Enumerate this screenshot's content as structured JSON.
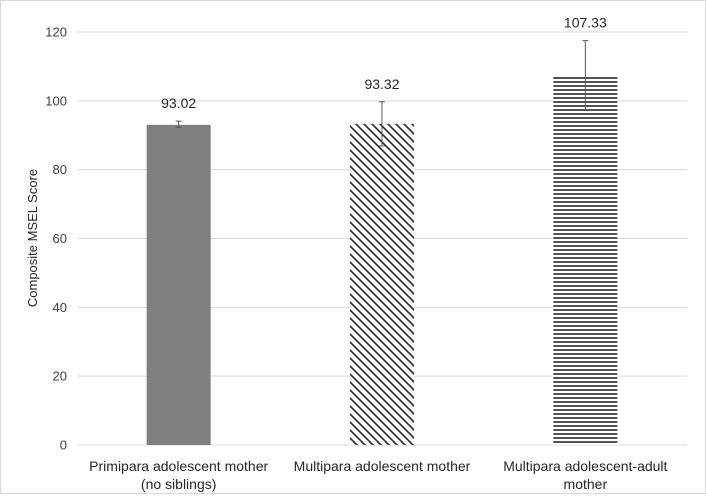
{
  "chart_data": {
    "type": "bar",
    "ylabel": "Composite MSEL Score",
    "ylim": [
      0,
      120
    ],
    "yticks": [
      0,
      20,
      40,
      60,
      80,
      100,
      120
    ],
    "grid": true,
    "categories": [
      [
        "Primipara adolescent mother",
        "(no siblings)"
      ],
      [
        "Multipara adolescent mother"
      ],
      [
        "Multipara adolescent-adult",
        "mother"
      ]
    ],
    "values": [
      93.02,
      93.32,
      107.33
    ],
    "data_labels": [
      "93.02",
      "93.32",
      "107.33"
    ],
    "error_bars": [
      {
        "low": 92.3,
        "high": 94.1
      },
      {
        "low": 86.9,
        "high": 99.7
      },
      {
        "low": 97.5,
        "high": 117.5
      }
    ],
    "fills": [
      "solid",
      "diagonal-stripes",
      "horizontal-stripes"
    ],
    "colors": {
      "bar": "#7f7f7f",
      "stripe": "#262626",
      "grid": "#d9d9d9",
      "error": "#595959"
    }
  }
}
